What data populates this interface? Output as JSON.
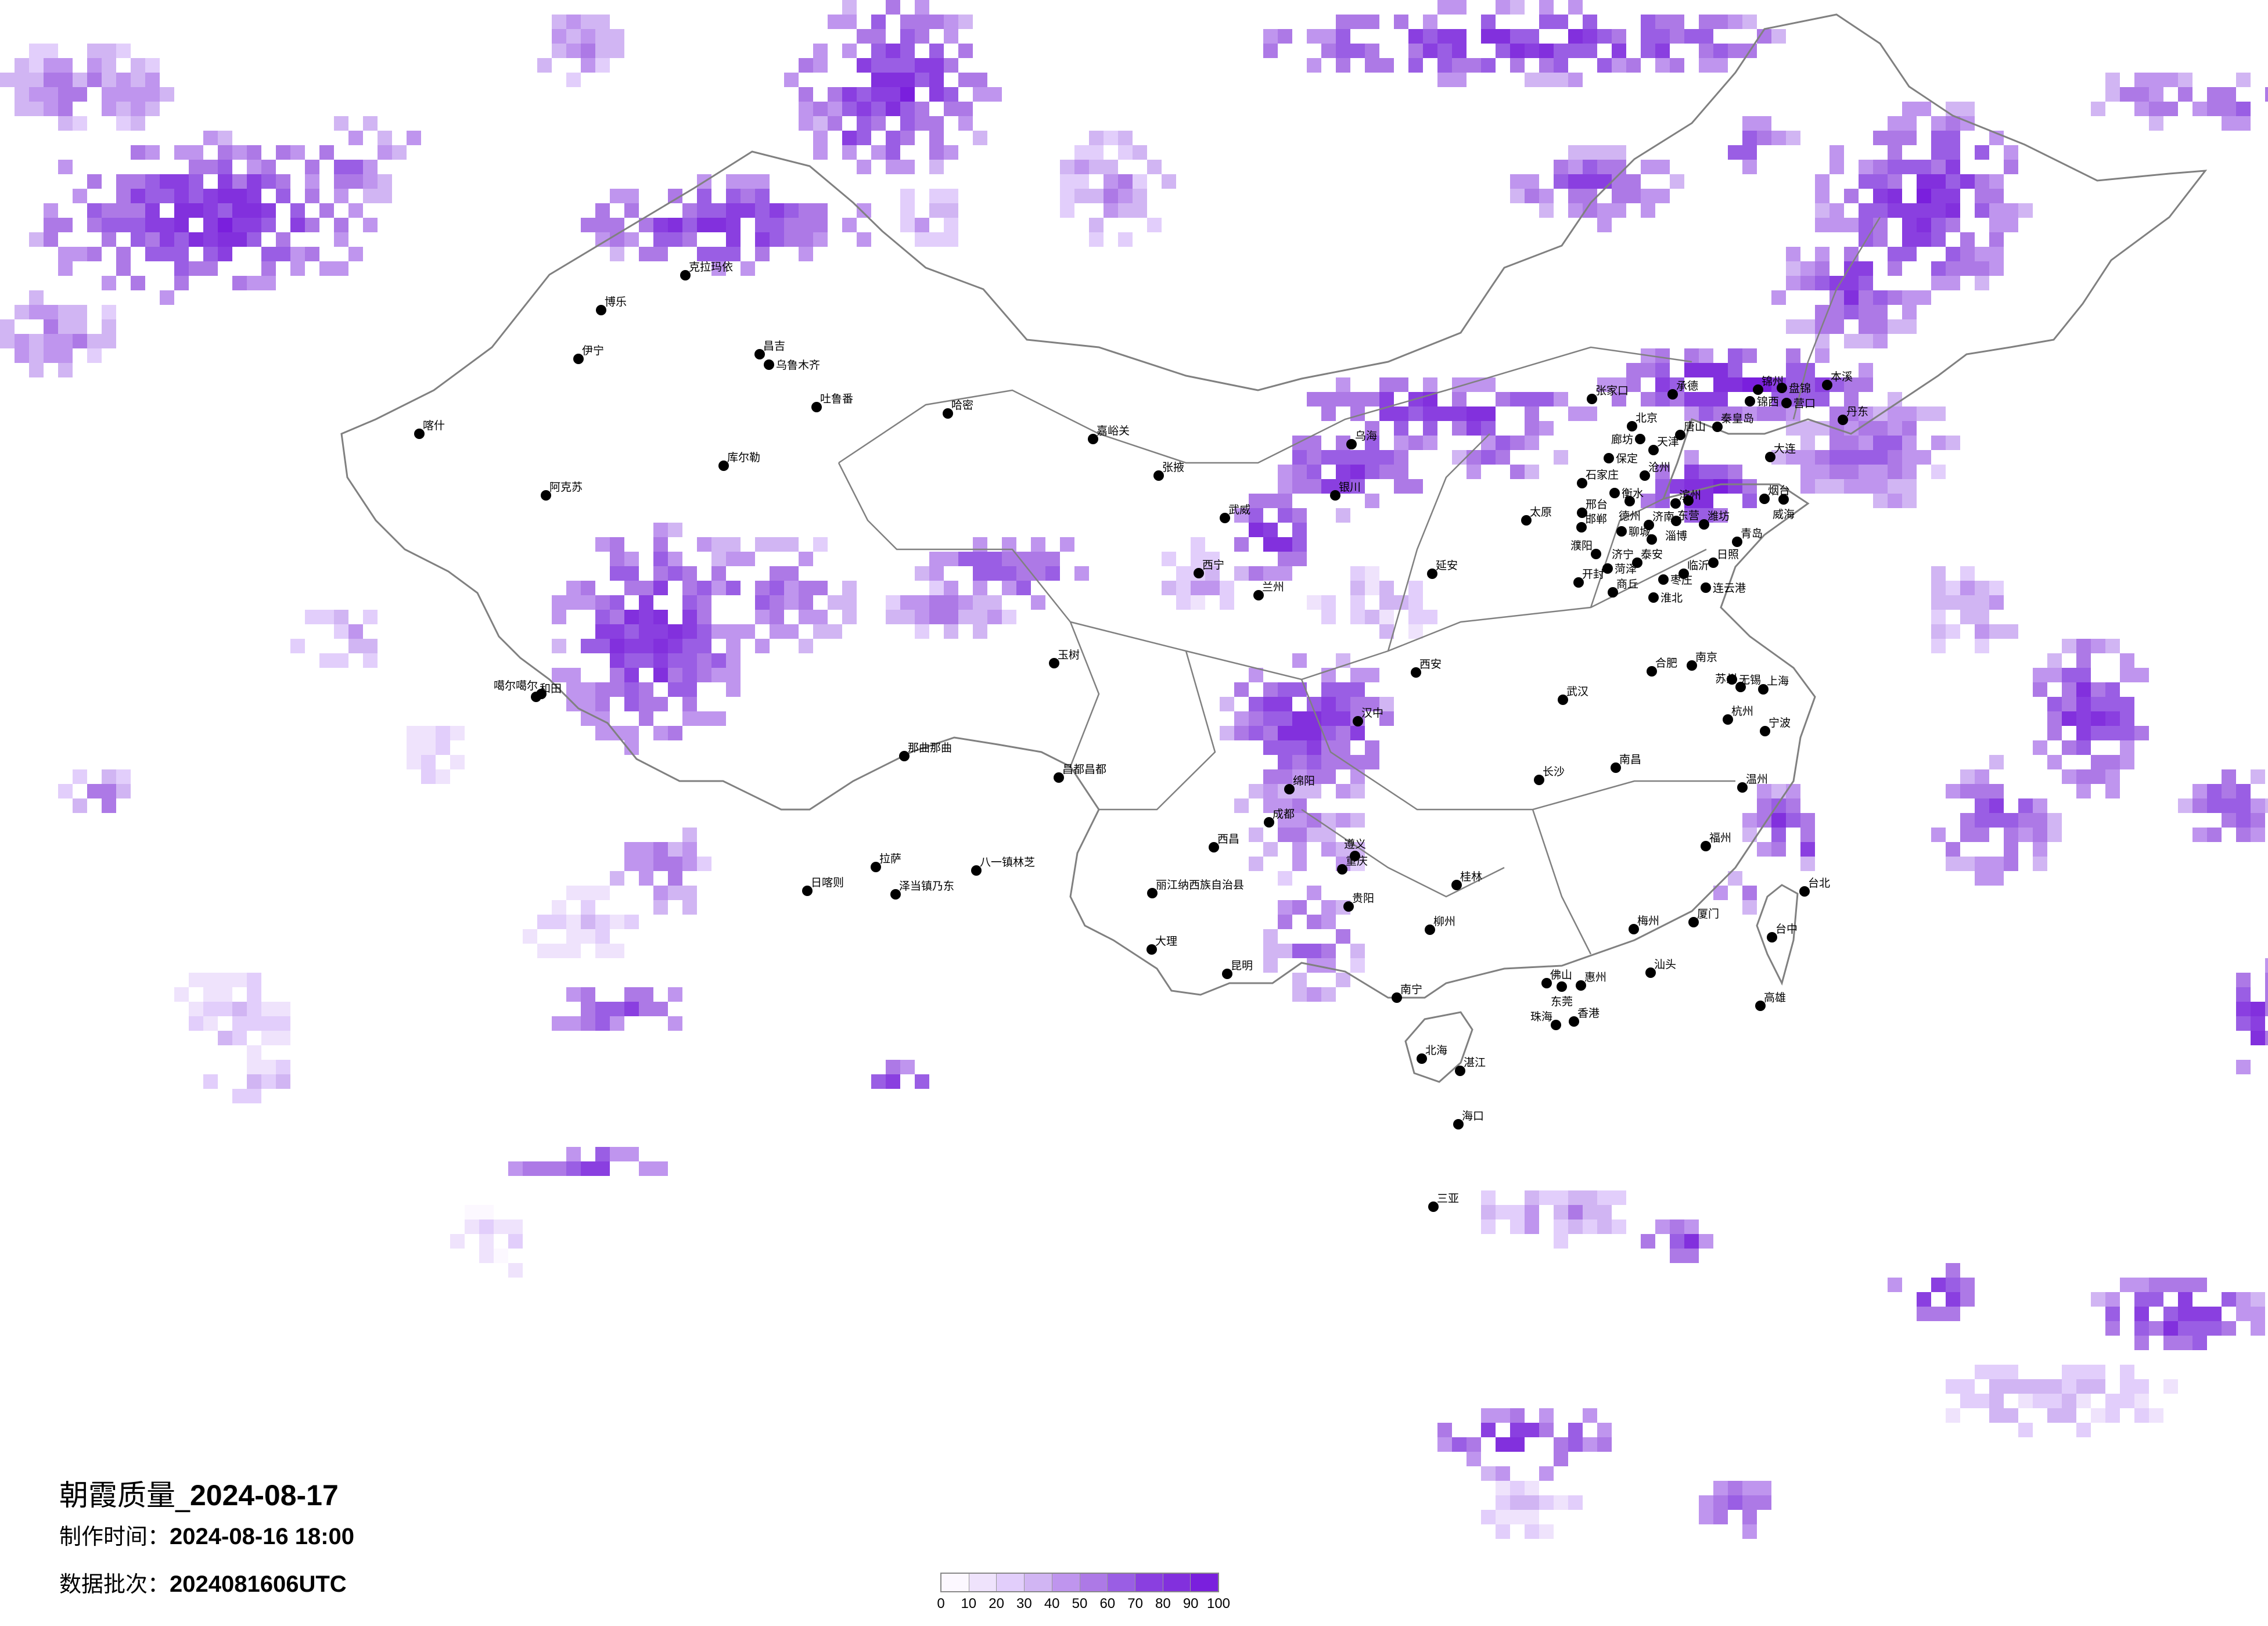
{
  "title": {
    "prefix": "朝霞质量_",
    "date": "2024-08-17"
  },
  "made_time": {
    "label": "制作时间：",
    "value": "2024-08-16 18:00"
  },
  "data_batch": {
    "label": "数据批次：",
    "value": "2024081606UTC"
  },
  "legend": {
    "ticks": [
      "0",
      "10",
      "20",
      "30",
      "40",
      "50",
      "60",
      "70",
      "80",
      "90",
      "100"
    ],
    "colors": [
      "#fcf8ff",
      "#efe3fc",
      "#e2cefb",
      "#d1b5f3",
      "#bf95ee",
      "#ad79e6",
      "#9a5ee4",
      "#8a3fe0",
      "#8230dd",
      "#7a1fdd"
    ]
  },
  "map": {
    "border_color": "#808080",
    "city_dot_color": "#000000"
  },
  "cities": [
    "北京",
    "天津",
    "上海",
    "重庆",
    "张家口",
    "承德",
    "廊坊",
    "唐山",
    "秦皇岛",
    "锦州",
    "锦西",
    "盘锦",
    "营口",
    "本溪",
    "丹东",
    "大连",
    "保定",
    "沧州",
    "石家庄",
    "衡水",
    "德州",
    "邢台",
    "邯郸",
    "聊城",
    "济南",
    "滨州",
    "东营",
    "淄博",
    "潍坊",
    "泰安",
    "烟台",
    "威海",
    "青岛",
    "日照",
    "临沂",
    "枣庄",
    "连云港",
    "济宁",
    "菏泽",
    "濮阳",
    "商丘",
    "开封",
    "淮北",
    "南京",
    "杭州",
    "苏州",
    "无锡",
    "合肥",
    "武汉",
    "南昌",
    "福州",
    "温州",
    "宁波",
    "长沙",
    "桂林",
    "柳州",
    "南宁",
    "佛山",
    "东莞",
    "惠州",
    "香港",
    "珠海",
    "汕头",
    "厦门",
    "梅州",
    "湛江",
    "北海",
    "海口",
    "三亚",
    "台北",
    "台中",
    "高雄",
    "克拉玛依",
    "博乐",
    "伊宁",
    "昌吉",
    "乌鲁木齐",
    "吐鲁番",
    "哈密",
    "库尔勒",
    "阿克苏",
    "和田",
    "喀什",
    "噶尔噶尔",
    "那曲那曲",
    "日喀则",
    "拉萨",
    "泽当镇乃东",
    "八一镇林芝",
    "玉树",
    "昌都昌都",
    "西宁",
    "兰州",
    "银川",
    "西安",
    "成都",
    "太原",
    "延安",
    "嘉峪关",
    "张掖",
    "武威",
    "汉中",
    "绵阳",
    "乌海",
    "昆明",
    "贵阳",
    "大理",
    "遵义",
    "西昌",
    "丽江纳西族自治县"
  ]
}
